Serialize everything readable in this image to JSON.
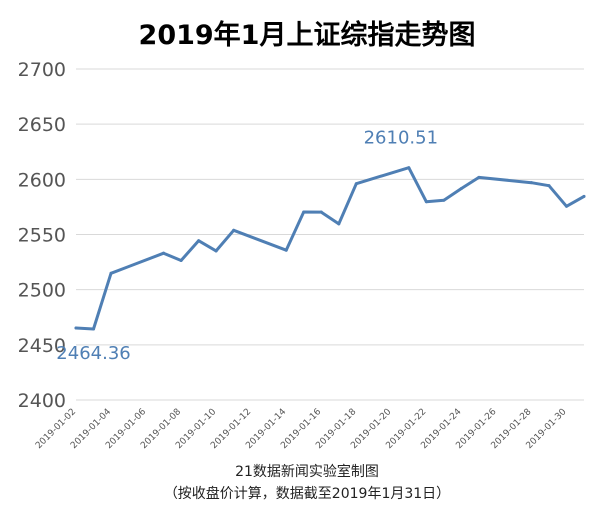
{
  "chart_data": {
    "type": "line",
    "title": "2019年1月上证综指走势图",
    "xlabel": "",
    "ylabel": "",
    "x": [
      "2019-01-02",
      "2019-01-03",
      "2019-01-04",
      "2019-01-07",
      "2019-01-08",
      "2019-01-09",
      "2019-01-10",
      "2019-01-11",
      "2019-01-14",
      "2019-01-15",
      "2019-01-16",
      "2019-01-17",
      "2019-01-18",
      "2019-01-21",
      "2019-01-22",
      "2019-01-23",
      "2019-01-24",
      "2019-01-25",
      "2019-01-28",
      "2019-01-29",
      "2019-01-30",
      "2019-01-31"
    ],
    "values": [
      2465.29,
      2464.36,
      2514.87,
      2533.09,
      2526.46,
      2544.34,
      2535.1,
      2553.83,
      2535.77,
      2570.42,
      2570.34,
      2559.64,
      2596.01,
      2610.51,
      2579.7,
      2581.0,
      2591.69,
      2601.72,
      2596.98,
      2594.25,
      2575.58,
      2584.57
    ],
    "x_tick_labels": [
      "2019-01-02",
      "2019-01-04",
      "2019-01-06",
      "2019-01-08",
      "2019-01-10",
      "2019-01-12",
      "2019-01-14",
      "2019-01-16",
      "2019-01-18",
      "2019-01-20",
      "2019-01-22",
      "2019-01-24",
      "2019-01-26",
      "2019-01-28",
      "2019-01-30"
    ],
    "y_ticks": [
      2400,
      2450,
      2500,
      2550,
      2600,
      2650,
      2700
    ],
    "ylim": [
      2400,
      2700
    ],
    "xlim": [
      "2019-01-02",
      "2019-01-31"
    ],
    "grid": true,
    "annotations": [
      {
        "text": "2610.51",
        "x": "2019-01-21",
        "y": 2610.51
      },
      {
        "text": "2464.36",
        "x": "2019-01-03",
        "y": 2464.36
      }
    ],
    "source": "21数据新闻实验室制图",
    "note": "（按收盘价计算，数据截至2019年1月31日）",
    "colors": {
      "line": "#4f7fb4",
      "grid": "#d9d9d9",
      "callout": "#4f7fb4"
    }
  }
}
